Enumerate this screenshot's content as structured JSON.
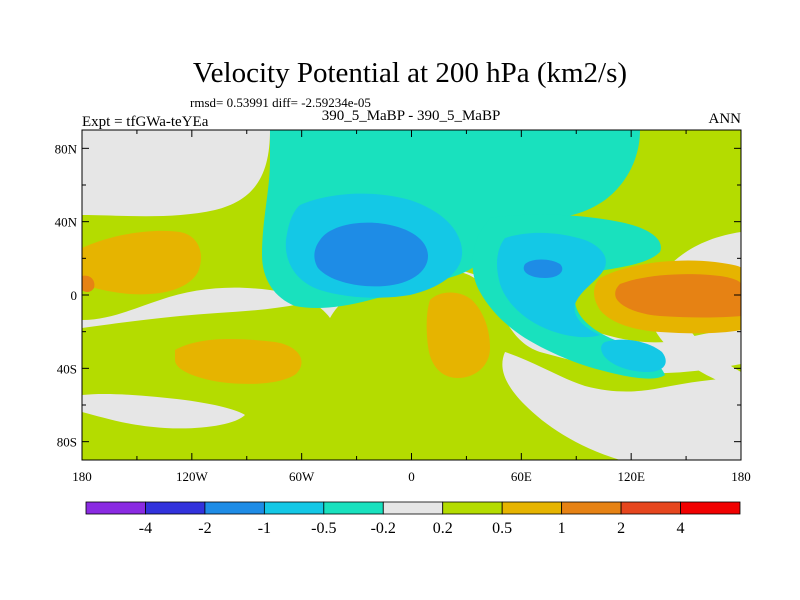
{
  "chart_data": {
    "type": "contour-map",
    "title": "Velocity Potential at 200 hPa (km2/s)",
    "stats": "rmsd= 0.53991 diff= -2.59234e-05",
    "left_label": "Expt = tfGWa-teYEa",
    "center_label": "390_5_MaBP - 390_5_MaBP",
    "right_label": "ANN",
    "lon_ticks": [
      "180",
      "120W",
      "60W",
      "0",
      "60E",
      "120E",
      "180"
    ],
    "lon_values": [
      -180,
      -120,
      -60,
      0,
      60,
      120,
      180
    ],
    "lat_ticks": [
      "80N",
      "40N",
      "0",
      "40S",
      "80S"
    ],
    "lat_values": [
      80,
      40,
      0,
      -40,
      -80
    ],
    "xlim": [
      -180,
      180
    ],
    "ylim": [
      -90,
      90
    ],
    "colorbar": {
      "labels": [
        "-4",
        "-2",
        "-1",
        "-0.5",
        "-0.2",
        "0.2",
        "0.5",
        "1",
        "2",
        "4"
      ],
      "colors": [
        "#8a2be2",
        "#3232dc",
        "#1e8ce6",
        "#14c8e6",
        "#19e1be",
        "#e6e6e6",
        "#b4dc00",
        "#e6b400",
        "#e68214",
        "#e6461e",
        "#f00000"
      ]
    },
    "palette": {
      "lt_m4": "#8a2be2",
      "m4_m2": "#3232dc",
      "m2_m1": "#1e8ce6",
      "m1_m05": "#14c8e6",
      "m05_m02": "#19e1be",
      "m02_02": "#e6e6e6",
      "p02_p05": "#b4dc00",
      "p05_p1": "#e6b400",
      "p1_p2": "#e68214",
      "p2_p4": "#e6461e",
      "gt_p4": "#f00000"
    }
  }
}
